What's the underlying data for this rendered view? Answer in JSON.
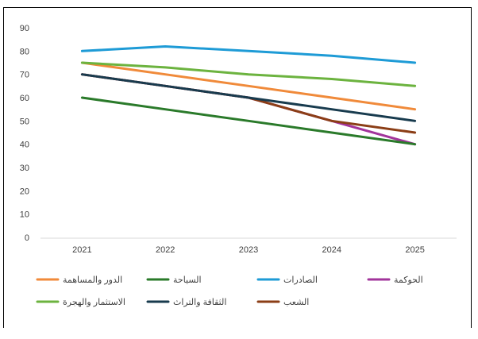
{
  "chart_data": {
    "type": "line",
    "categories": [
      "2021",
      "2022",
      "2023",
      "2024",
      "2025"
    ],
    "ylim": [
      0,
      90
    ],
    "yticks": [
      0,
      10,
      20,
      30,
      40,
      50,
      60,
      70,
      80,
      90
    ],
    "grid": false,
    "legend_position": "bottom",
    "title": "",
    "xlabel": "",
    "ylabel": "",
    "series": [
      {
        "name": "الحوكمة",
        "color": "#A2349B",
        "values": [
          70,
          65,
          60,
          50,
          40
        ]
      },
      {
        "name": "الصادرات",
        "color": "#1E9BD6",
        "values": [
          80,
          82,
          80,
          78,
          75
        ]
      },
      {
        "name": "السياحة",
        "color": "#2A7A2A",
        "values": [
          60,
          55,
          50,
          45,
          40
        ]
      },
      {
        "name": "الدور والمساهمة",
        "color": "#F08A3A",
        "values": [
          75,
          70,
          65,
          60,
          55
        ]
      },
      {
        "name": "الشعب",
        "color": "#8B3E16",
        "values": [
          70,
          65,
          60,
          50,
          45
        ]
      },
      {
        "name": "الثقافة والتراث",
        "color": "#183B4E",
        "values": [
          70,
          65,
          60,
          55,
          50
        ]
      },
      {
        "name": "الاستثمار والهجرة",
        "color": "#6CB33F",
        "values": [
          75,
          73,
          70,
          68,
          65
        ]
      }
    ]
  }
}
